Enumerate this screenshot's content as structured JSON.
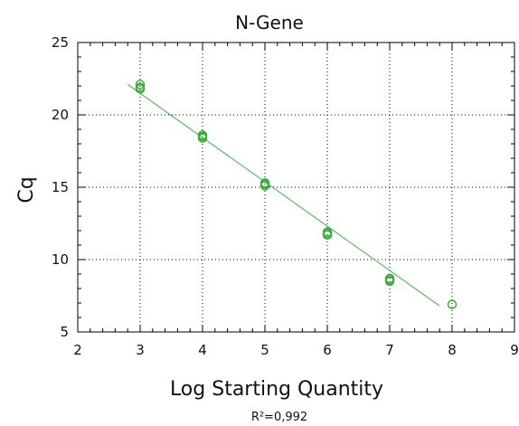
{
  "chart_data": {
    "type": "scatter",
    "title": "N-Gene",
    "xlabel": "Log Starting Quantity",
    "ylabel": "Cq",
    "xlim": [
      2,
      9
    ],
    "ylim": [
      5,
      25
    ],
    "x_ticks": [
      2,
      3,
      4,
      5,
      6,
      7,
      8,
      9
    ],
    "y_ticks": [
      5,
      10,
      15,
      20,
      25
    ],
    "grid": true,
    "annotation": "R²=0,992",
    "colors": {
      "series": "#3daa3d",
      "fit_line": "#5cb85c",
      "grid": "#000000",
      "axis": "#000000"
    },
    "series": [
      {
        "points": [
          [
            3,
            22.1
          ],
          [
            3,
            21.9
          ],
          [
            3,
            21.8
          ],
          [
            4,
            18.6
          ],
          [
            4,
            18.4
          ],
          [
            4,
            18.5
          ],
          [
            5,
            15.3
          ],
          [
            5,
            15.1
          ],
          [
            5,
            15.2
          ],
          [
            6,
            11.9
          ],
          [
            6,
            11.7
          ],
          [
            6,
            11.8
          ],
          [
            7,
            8.7
          ],
          [
            7,
            8.5
          ],
          [
            7,
            8.6
          ],
          [
            8,
            6.9
          ]
        ]
      }
    ],
    "fit_line": {
      "x": [
        2.8,
        7.8
      ],
      "y": [
        22.1,
        6.8
      ]
    }
  }
}
